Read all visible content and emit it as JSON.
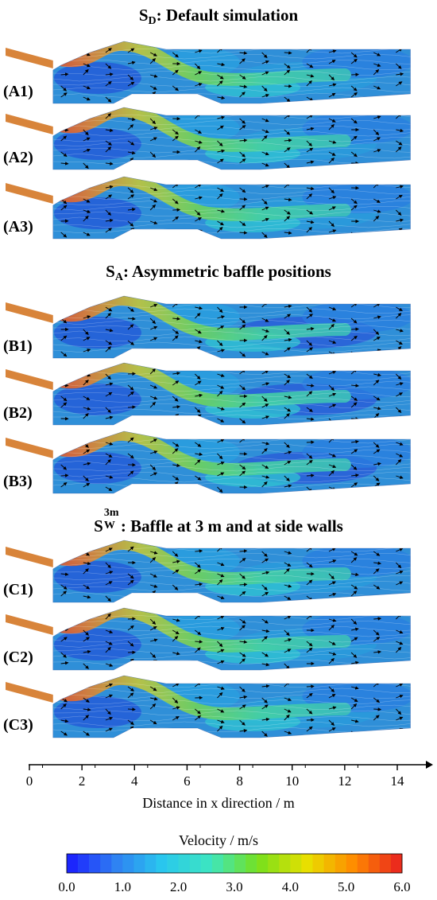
{
  "sections": [
    {
      "id": "SD",
      "title_main": "S",
      "title_sub": "D",
      "title_rest": ": Default simulation",
      "panels": [
        "(A1)",
        "(A2)",
        "(A3)"
      ]
    },
    {
      "id": "SA",
      "title_main": "S",
      "title_sub": "A",
      "title_rest": ": Asymmetric baffle positions",
      "panels": [
        "(B1)",
        "(B2)",
        "(B3)"
      ]
    },
    {
      "id": "SW3m",
      "title_main": "S",
      "title_sup": "3m",
      "title_sub": "W",
      "title_rest": ": Baffle at 3 m and at side walls",
      "panels": [
        "(C1)",
        "(C2)",
        "(C3)"
      ]
    }
  ],
  "x_axis": {
    "label": "Distance in x direction / m",
    "ticks": [
      "0",
      "2",
      "4",
      "6",
      "8",
      "10",
      "12",
      "14"
    ],
    "range": [
      0,
      14.5
    ]
  },
  "colorbar": {
    "title": "Velocity / m/s",
    "ticks": [
      "0.0",
      "1.0",
      "2.0",
      "3.0",
      "4.0",
      "5.0",
      "6.0"
    ],
    "range": [
      0,
      6
    ],
    "colors": [
      "#1a1aff",
      "#2f7ff2",
      "#29c7ee",
      "#3de6c0",
      "#76e01c",
      "#e8e000",
      "#ff8a00",
      "#e82020"
    ]
  }
}
